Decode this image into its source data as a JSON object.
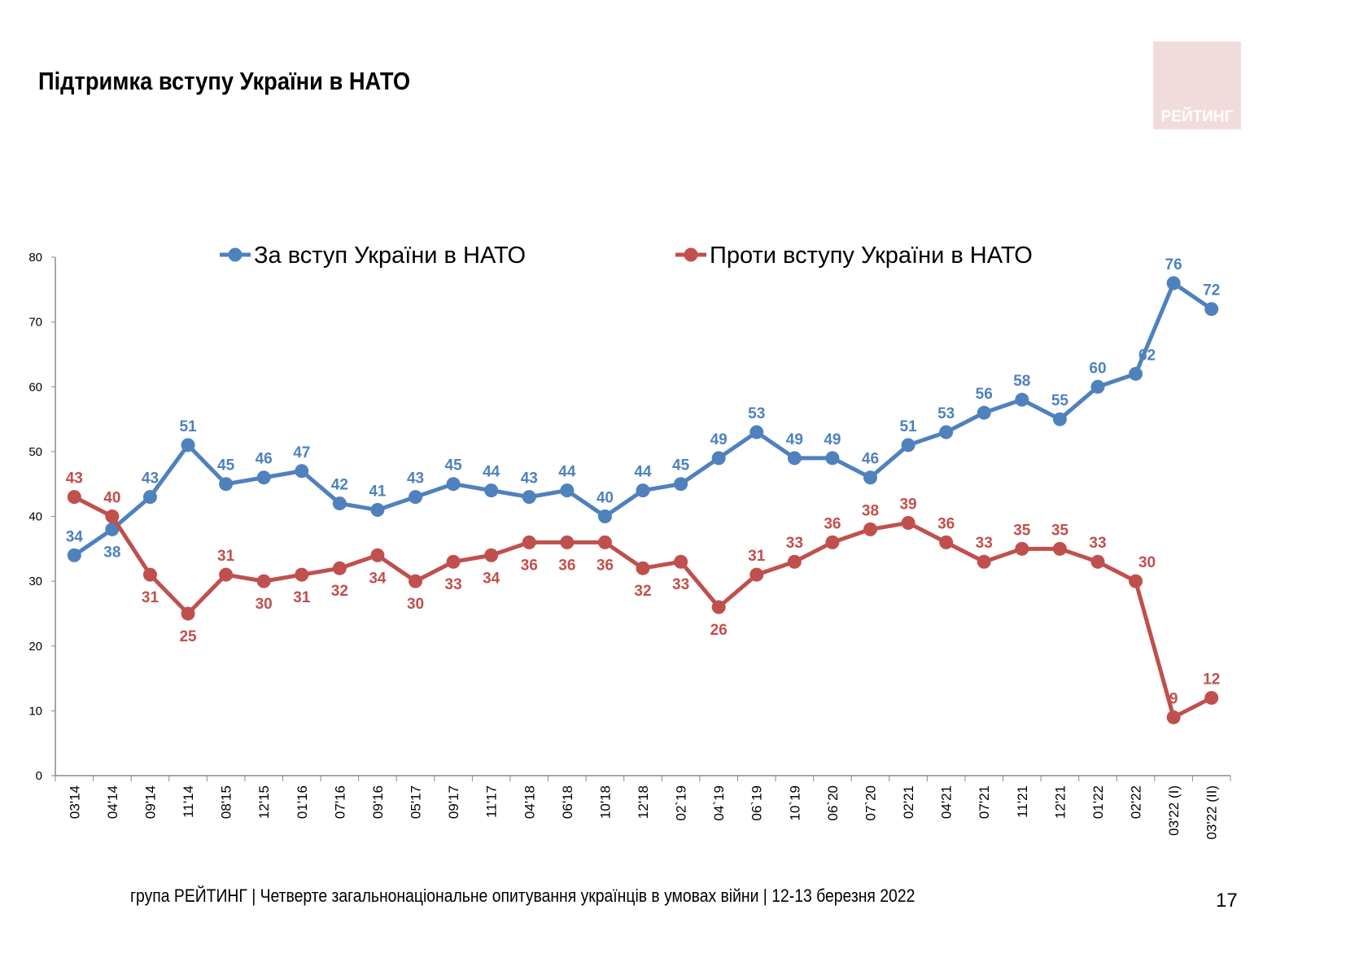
{
  "title": "Підтримка вступу України в НАТО",
  "logo_text": "РЕЙТИНГ",
  "footer": "група РЕЙТИНГ | Четверте загальнонаціональне опитування українців в умовах війни | 12-13 березня 2022",
  "page_number": "17",
  "chart_data": {
    "type": "line",
    "title": "",
    "ylim": [
      0,
      80
    ],
    "yticks": [
      0,
      10,
      20,
      30,
      40,
      50,
      60,
      70,
      80
    ],
    "grid": false,
    "legend_position": "top",
    "categories": [
      "03'14",
      "04'14",
      "09'14",
      "11'14",
      "08'15",
      "12'15",
      "01'16",
      "07'16",
      "09'16",
      "05'17",
      "09'17",
      "11'17",
      "04'18",
      "06'18",
      "10'18",
      "12'18",
      "02`19",
      "04`19",
      "06`19",
      "10`19",
      "06`20",
      "07`20",
      "02'21",
      "04'21",
      "07'21",
      "11'21",
      "12'21",
      "01'22",
      "02'22",
      "03'22 (I)",
      "03'22 (II)"
    ],
    "series": [
      {
        "name": "За вступ України в НАТО",
        "color": "#4f81bd",
        "label_color": "#4f81bd",
        "values": [
          34,
          38,
          43,
          51,
          45,
          46,
          47,
          42,
          41,
          43,
          45,
          44,
          43,
          44,
          40,
          44,
          45,
          49,
          53,
          49,
          49,
          46,
          51,
          53,
          56,
          58,
          55,
          60,
          62,
          76,
          72
        ]
      },
      {
        "name": "Проти вступу України в НАТО",
        "color": "#c0504d",
        "label_color": "#c0504d",
        "values": [
          43,
          40,
          31,
          25,
          31,
          30,
          31,
          32,
          34,
          30,
          33,
          34,
          36,
          36,
          36,
          32,
          33,
          26,
          31,
          33,
          36,
          38,
          39,
          36,
          33,
          35,
          35,
          33,
          30,
          9,
          12
        ]
      }
    ]
  }
}
